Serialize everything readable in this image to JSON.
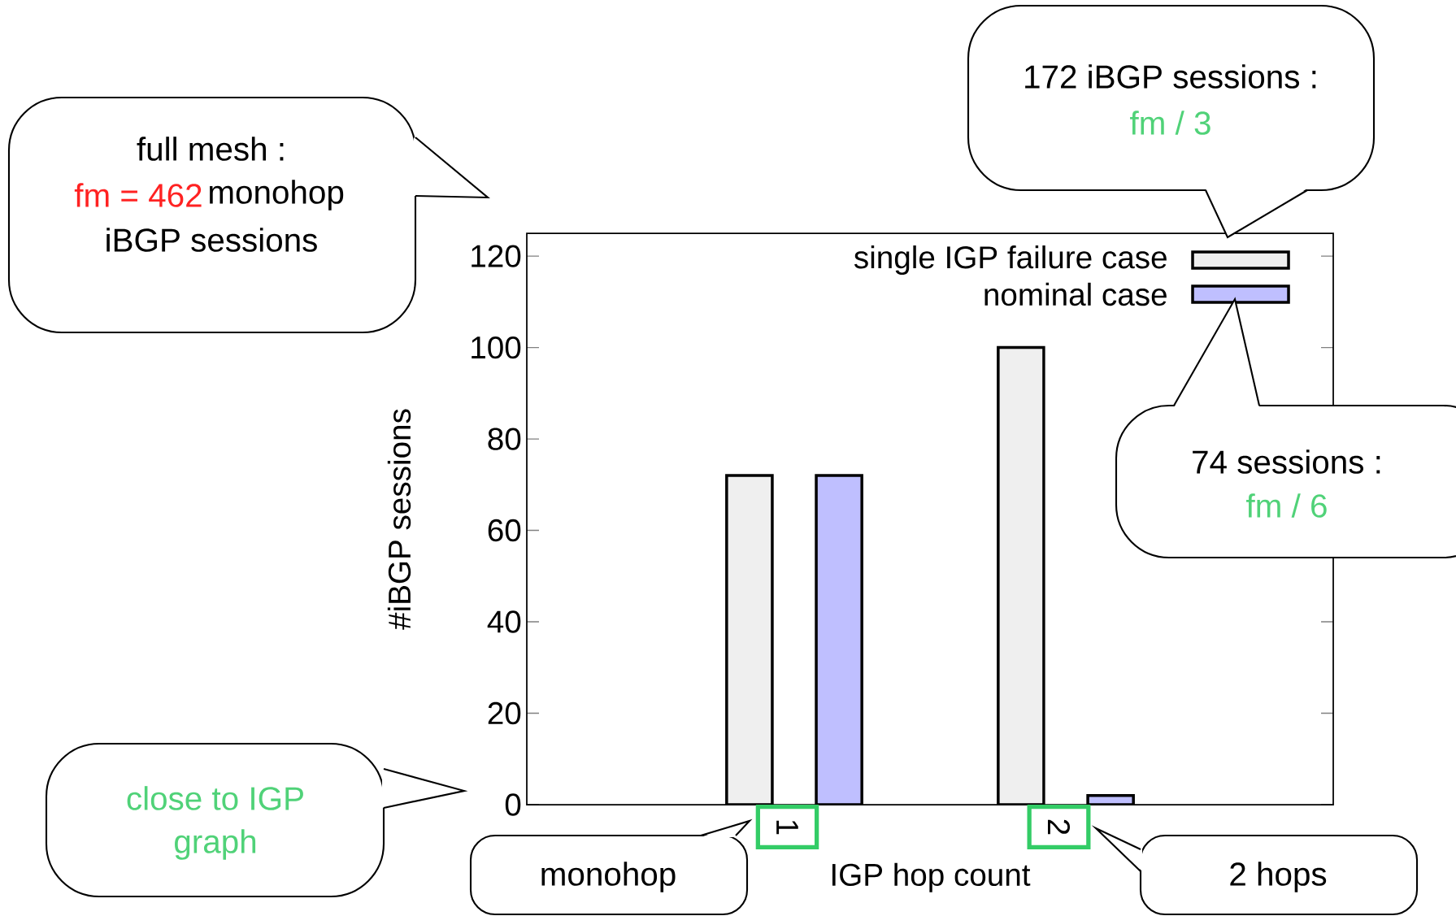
{
  "chart_data": {
    "type": "bar",
    "xlabel": "IGP hop count",
    "ylabel": "#iBGP sessions",
    "categories": [
      "1",
      "2"
    ],
    "series": [
      {
        "name": "single IGP failure case",
        "color": "#efefef",
        "values": [
          72,
          100
        ]
      },
      {
        "name": "nominal case",
        "color": "#bfbfff",
        "values": [
          72,
          2
        ]
      }
    ],
    "ylim": [
      0,
      125
    ],
    "yticks": [
      0,
      20,
      40,
      60,
      80,
      100,
      120
    ],
    "legend": "top right",
    "annotations": [
      "full mesh :",
      "fm = 462",
      "monohop",
      "iBGP  sessions",
      "172 iBGP sessions :",
      "fm / 3",
      "74 sessions :",
      "fm / 6",
      "close to IGP",
      "graph",
      "monohop",
      "2 hops"
    ]
  }
}
